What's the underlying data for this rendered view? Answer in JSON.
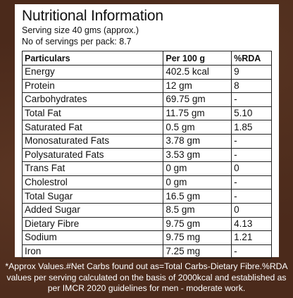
{
  "title": "Nutritional Information",
  "serving_size": "Serving size 40 gms (approx.)",
  "servings_per_pack": "No of servings per pack: 8.7",
  "table": {
    "headers": [
      "Particulars",
      "Per 100 g",
      "%RDA"
    ],
    "rows": [
      [
        "Energy",
        "402.5 kcal",
        "9"
      ],
      [
        "Protein",
        "12 gm",
        "8"
      ],
      [
        "Carbohydrates",
        "69.75 gm",
        "-"
      ],
      [
        "Total Fat",
        "11.75 gm",
        "5.10"
      ],
      [
        "Saturated Fat",
        "0.5 gm",
        "1.85"
      ],
      [
        "Monosaturated Fats",
        "3.78 gm",
        "-"
      ],
      [
        "Polysaturated Fats",
        "3.53 gm",
        "-"
      ],
      [
        "Trans Fat",
        "0 gm",
        "0"
      ],
      [
        "Cholestrol",
        "0 gm",
        "-"
      ],
      [
        "Total Sugar",
        "16.5 gm",
        "-"
      ],
      [
        "Added Sugar",
        "8.5 gm",
        "0"
      ],
      [
        "Dietary Fibre",
        "9.75 gm",
        "4.13"
      ],
      [
        "Sodium",
        "9.75 mg",
        "1.21"
      ],
      [
        "Iron",
        "7.25 mg",
        "-"
      ]
    ]
  },
  "footnote": {
    "line1": "*Approx Values.#Net Carbs found out as=Total Carbs-Dietary Fibre.%RDA",
    "line2": "values per serving calculated on the basis of 2000kcal and established as",
    "line3": "per IMCR 2020 guidelines for men - moderate work."
  },
  "colors": {
    "background": "#4b2a1b",
    "card": "#ffffff",
    "text": "#111111"
  }
}
